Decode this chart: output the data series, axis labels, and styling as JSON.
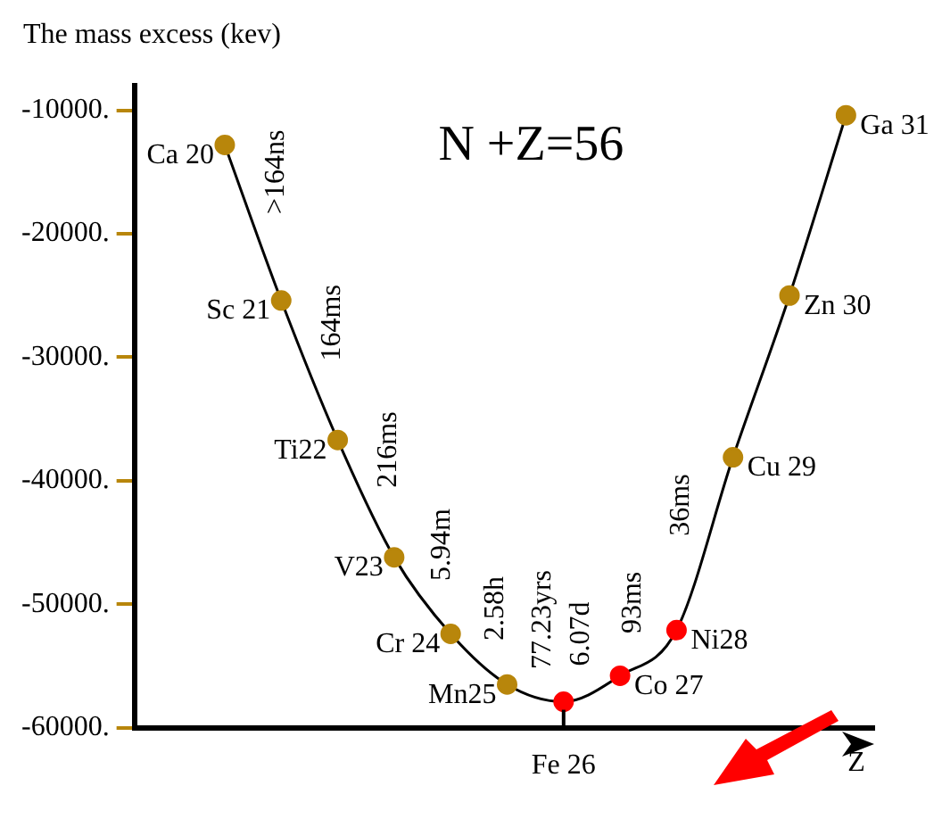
{
  "chart_data": {
    "type": "line",
    "title": "N +Z=56",
    "ylabel": "The mass excess (kev)",
    "xlabel": "Z",
    "categories": [
      null,
      null,
      null,
      null,
      null,
      null,
      "Fe 26",
      null,
      null,
      null,
      null,
      null
    ],
    "series": [
      {
        "color": "#000000",
        "colors": [
          "#b8860b",
          "#b8860b",
          "#b8860b",
          "#b8860b",
          "#b8860b",
          "#b8860b",
          "#ff0000",
          "#ff0000",
          "#ff0000",
          "#b8860b",
          "#b8860b",
          "#b8860b"
        ],
        "values": [
          -12800,
          -25400,
          -36700,
          -46200,
          -52400,
          -56500,
          -57900,
          -55800,
          -52100,
          -38100,
          -25000,
          -10400
        ],
        "value_labels": [
          "Ca 20",
          "Sc 21",
          "Ti22",
          "V23",
          "Cr 24",
          "Mn25",
          null,
          "Co 27",
          "Ni28",
          "Cu 29",
          "Zn 30",
          "Ga 31"
        ]
      }
    ],
    "annotations": [
      ">164ns",
      "164ms",
      "216ms",
      "5.94m",
      "2.58h",
      "77.23yrs",
      "6.07d",
      "93ms",
      "36ms"
    ],
    "ylim": [
      -60000,
      -8000
    ],
    "yticks": [
      {
        "value": -60000,
        "label": "-60000."
      },
      {
        "value": -50000,
        "label": "-50000."
      },
      {
        "value": -40000,
        "label": "-40000."
      },
      {
        "value": -30000,
        "label": "-30000."
      },
      {
        "value": -20000,
        "label": "-20000."
      },
      {
        "value": -10000,
        "label": "-10000."
      }
    ],
    "marker": "circle",
    "grid": false,
    "legend": false
  }
}
